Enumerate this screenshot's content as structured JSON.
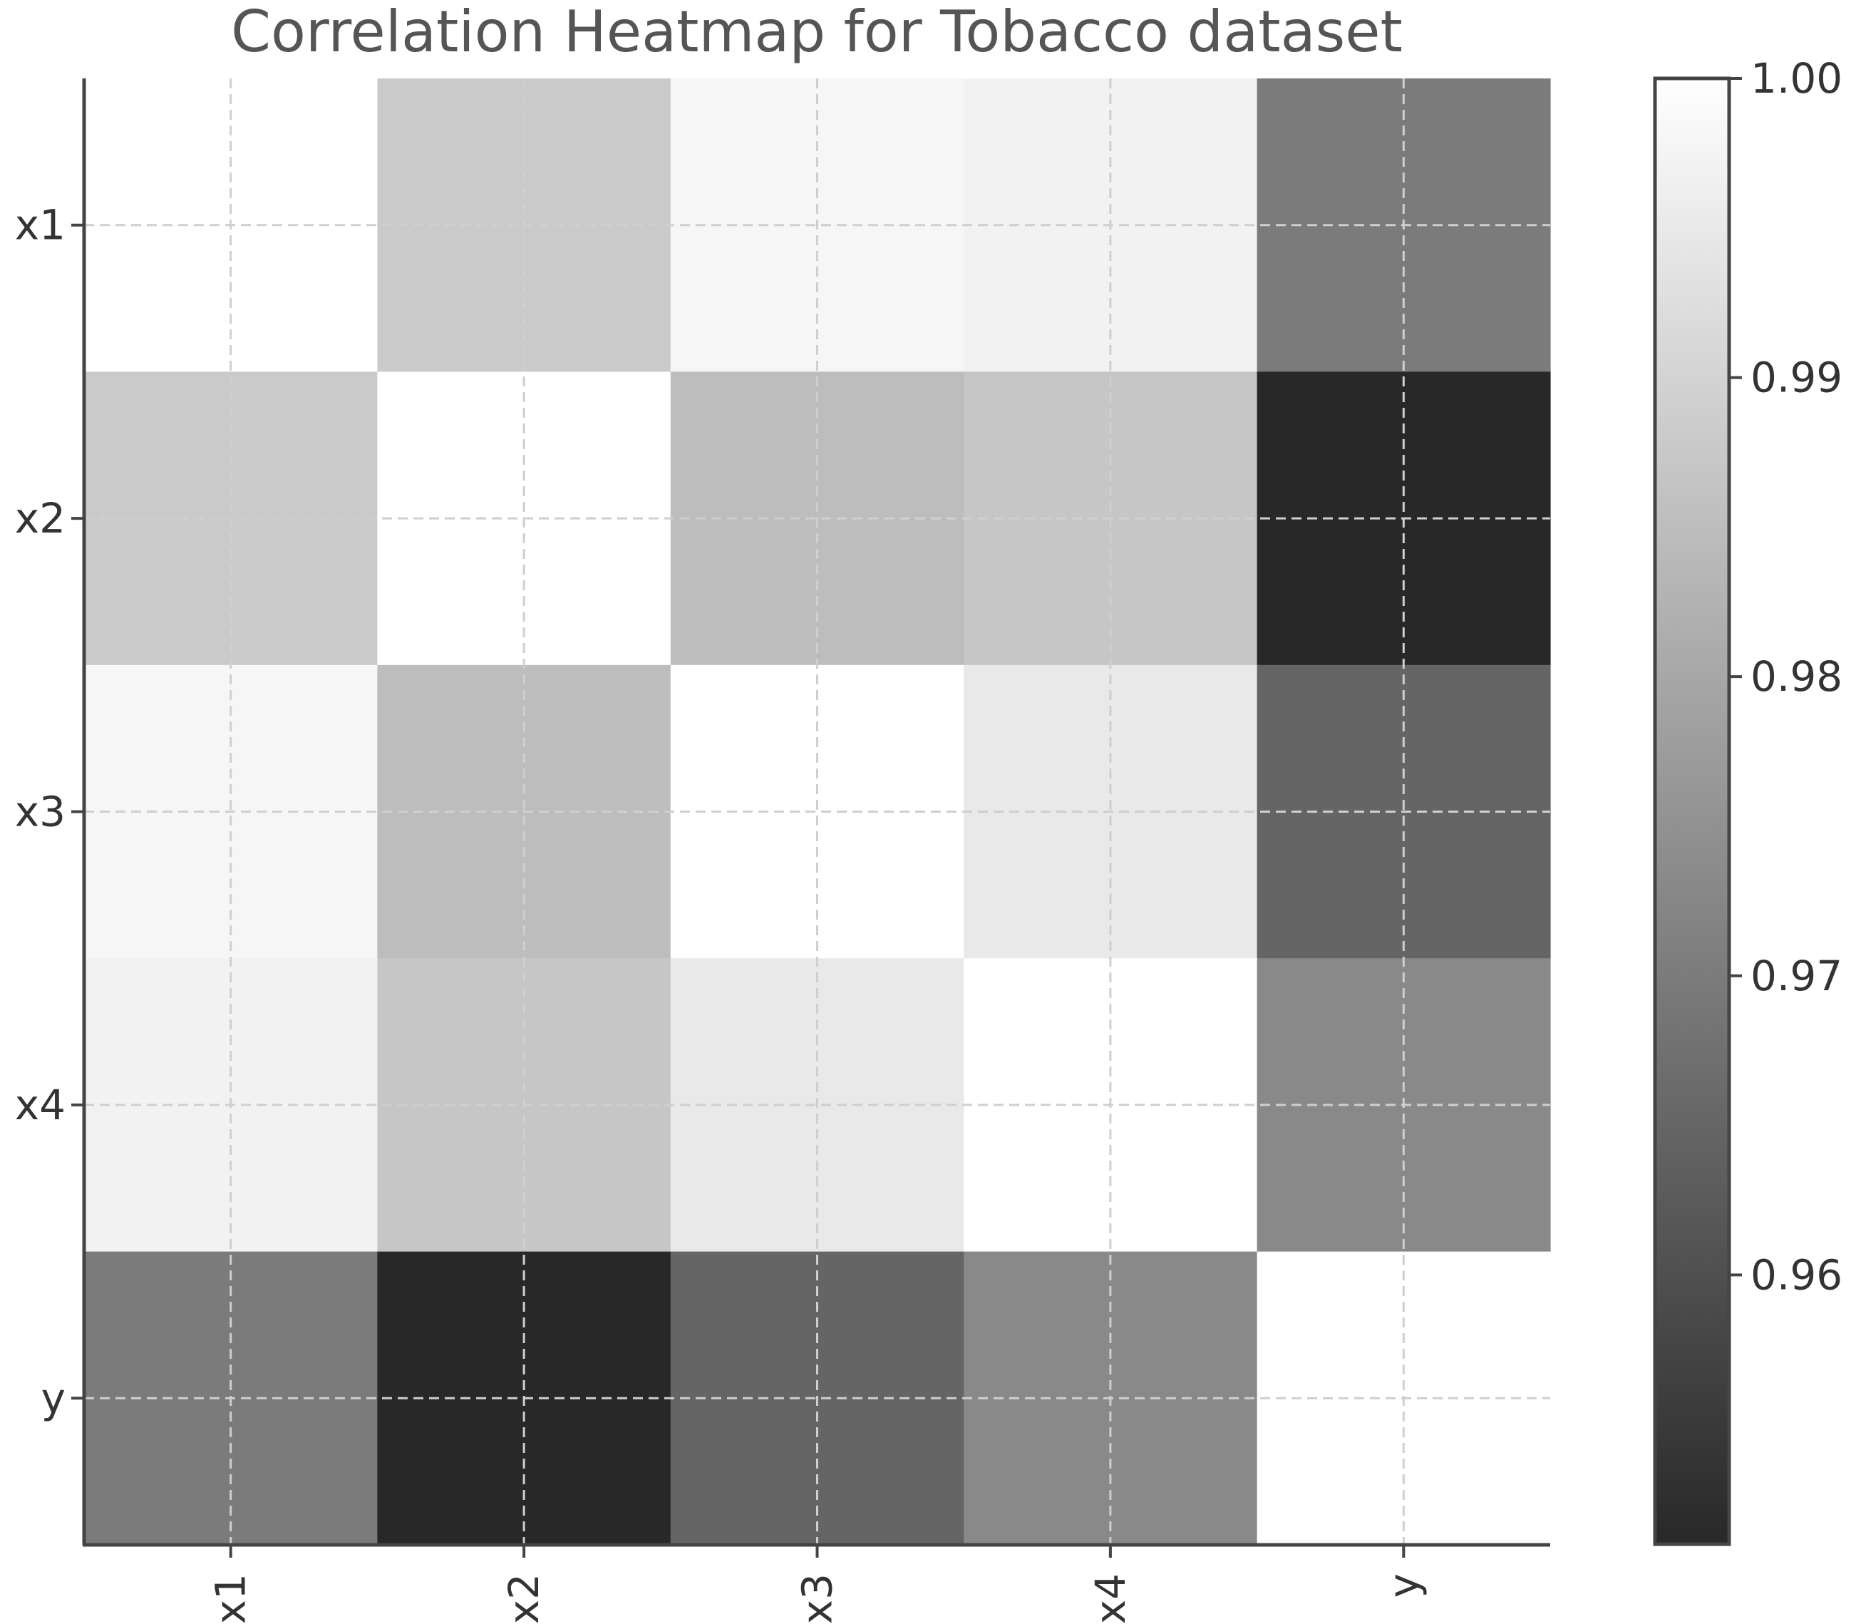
{
  "chart_data": {
    "type": "heatmap",
    "title": "Correlation Heatmap for Tobacco dataset",
    "x_labels": [
      "x1",
      "x2",
      "x3",
      "x4",
      "y"
    ],
    "y_labels": [
      "x1",
      "x2",
      "x3",
      "x4",
      "y"
    ],
    "values": [
      [
        1.0,
        0.988,
        0.998,
        0.997,
        0.97
      ],
      [
        0.988,
        1.0,
        0.985,
        0.987,
        0.951
      ],
      [
        0.998,
        0.985,
        1.0,
        0.995,
        0.965
      ],
      [
        0.997,
        0.987,
        0.995,
        1.0,
        0.973
      ],
      [
        0.97,
        0.951,
        0.965,
        0.973,
        1.0
      ]
    ],
    "colorbar": {
      "min": 0.951,
      "max": 1.0,
      "ticks": [
        1.0,
        0.99,
        0.98,
        0.97,
        0.96
      ],
      "tick_labels": [
        "1.00",
        "0.99",
        "0.98",
        "0.97",
        "0.96"
      ],
      "low_color": "#282828",
      "high_color": "#ffffff"
    },
    "grid": true,
    "xlabel": "",
    "ylabel": ""
  }
}
